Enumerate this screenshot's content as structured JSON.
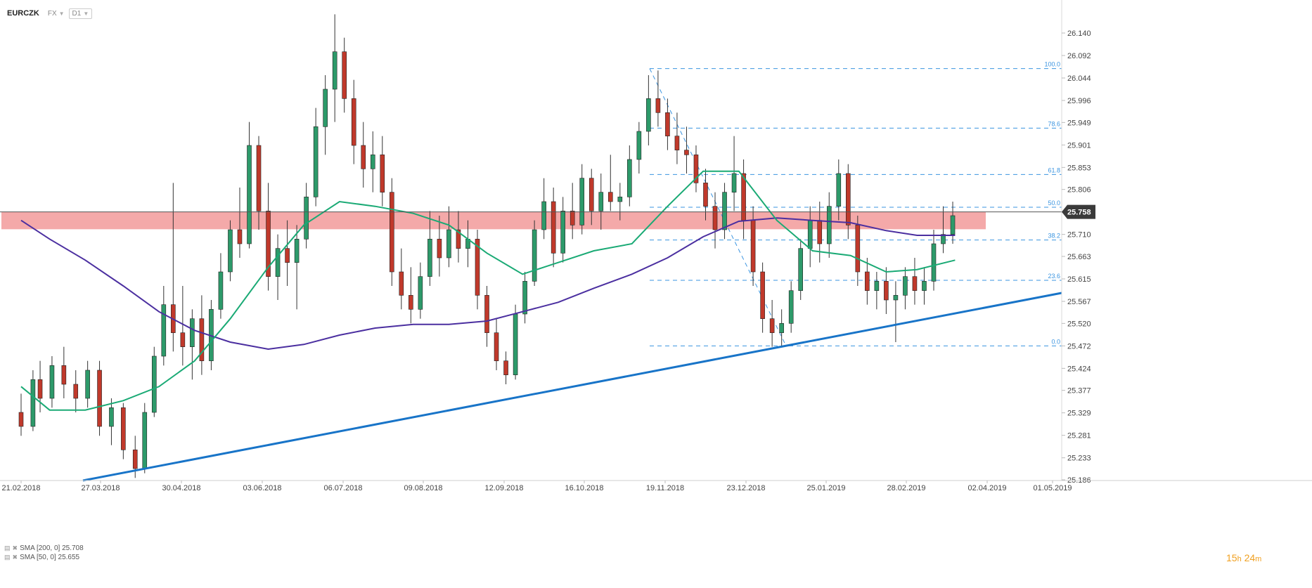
{
  "header": {
    "symbol": "EURCZK",
    "market": "FX",
    "interval": "D1"
  },
  "indicators": [
    {
      "label": "SMA [200, 0] 25.708"
    },
    {
      "label": "SMA [50, 0] 25.655"
    }
  ],
  "timer": {
    "hours": "15",
    "h_unit": "h",
    "minutes": "24",
    "m_unit": "m"
  },
  "colors": {
    "sma200": "#4b2fa0",
    "sma50": "#1aaa75",
    "trendline": "#1874c8",
    "fib": "#3a94e0",
    "zone": "#f08c8c",
    "bull": "#2d9a6a",
    "bear": "#c0392b",
    "wick": "#333333",
    "price_tag": "#3a3a3a"
  },
  "chart_data": {
    "type": "candlestick",
    "instrument": "EURCZK",
    "timeframe": "D1",
    "y_ticks": [
      26.14,
      26.092,
      26.044,
      25.996,
      25.949,
      25.901,
      25.853,
      25.806,
      25.758,
      25.71,
      25.663,
      25.615,
      25.567,
      25.52,
      25.472,
      25.424,
      25.377,
      25.329,
      25.281,
      25.233,
      25.186
    ],
    "y_tick_labels": [
      "26.140",
      "26.092",
      "26.044",
      "25.996",
      "25.949",
      "25.901",
      "25.853",
      "25.806",
      "25.758",
      "25.710",
      "25.663",
      "25.615",
      "25.567",
      "25.520",
      "25.472",
      "25.424",
      "25.377",
      "25.329",
      "25.281",
      "25.233",
      "25.186"
    ],
    "ylim": [
      25.18,
      26.17
    ],
    "x_tick_labels": [
      "21.02.2018",
      "27.03.2018",
      "30.04.2018",
      "03.06.2018",
      "06.07.2018",
      "09.08.2018",
      "12.09.2018",
      "16.10.2018",
      "19.11.2018",
      "23.12.2018",
      "25.01.2019",
      "28.02.2019",
      "02.04.2019",
      "01.05.2019"
    ],
    "last_price": 25.758,
    "last_price_label": "25.758",
    "resistance_zone": [
      25.721,
      25.758
    ],
    "fibonacci": {
      "high": 26.064,
      "low": 25.472,
      "levels": [
        {
          "ratio": "100.0",
          "value": 26.064
        },
        {
          "ratio": "78.6",
          "value": 25.937
        },
        {
          "ratio": "61.8",
          "value": 25.838
        },
        {
          "ratio": "50.0",
          "value": 25.768
        },
        {
          "ratio": "38.2",
          "value": 25.698
        },
        {
          "ratio": "23.6",
          "value": 25.612
        },
        {
          "ratio": "0.0",
          "value": 25.472
        }
      ]
    },
    "trendline": {
      "from": {
        "date": "2018-03-22",
        "value": 25.18
      },
      "to": {
        "date": "2019-05-01",
        "value": 25.585
      }
    },
    "sma200": [
      {
        "date": "2018-02-21",
        "value": 25.74
      },
      {
        "date": "2018-03-05",
        "value": 25.7
      },
      {
        "date": "2018-03-20",
        "value": 25.655
      },
      {
        "date": "2018-04-05",
        "value": 25.6
      },
      {
        "date": "2018-04-20",
        "value": 25.545
      },
      {
        "date": "2018-05-05",
        "value": 25.505
      },
      {
        "date": "2018-05-20",
        "value": 25.48
      },
      {
        "date": "2018-06-05",
        "value": 25.465
      },
      {
        "date": "2018-06-20",
        "value": 25.475
      },
      {
        "date": "2018-07-05",
        "value": 25.495
      },
      {
        "date": "2018-07-20",
        "value": 25.51
      },
      {
        "date": "2018-08-05",
        "value": 25.518
      },
      {
        "date": "2018-08-20",
        "value": 25.518
      },
      {
        "date": "2018-09-05",
        "value": 25.525
      },
      {
        "date": "2018-09-20",
        "value": 25.545
      },
      {
        "date": "2018-10-05",
        "value": 25.565
      },
      {
        "date": "2018-10-20",
        "value": 25.595
      },
      {
        "date": "2018-11-05",
        "value": 25.625
      },
      {
        "date": "2018-11-20",
        "value": 25.66
      },
      {
        "date": "2018-12-05",
        "value": 25.705
      },
      {
        "date": "2018-12-20",
        "value": 25.738
      },
      {
        "date": "2019-01-05",
        "value": 25.745
      },
      {
        "date": "2019-01-20",
        "value": 25.74
      },
      {
        "date": "2019-02-05",
        "value": 25.735
      },
      {
        "date": "2019-02-20",
        "value": 25.718
      },
      {
        "date": "2019-03-05",
        "value": 25.708
      },
      {
        "date": "2019-03-21",
        "value": 25.708
      }
    ],
    "sma50": [
      {
        "date": "2018-02-21",
        "value": 25.385
      },
      {
        "date": "2018-03-05",
        "value": 25.335
      },
      {
        "date": "2018-03-20",
        "value": 25.335
      },
      {
        "date": "2018-04-05",
        "value": 25.355
      },
      {
        "date": "2018-04-20",
        "value": 25.385
      },
      {
        "date": "2018-05-05",
        "value": 25.44
      },
      {
        "date": "2018-05-20",
        "value": 25.53
      },
      {
        "date": "2018-06-05",
        "value": 25.64
      },
      {
        "date": "2018-06-20",
        "value": 25.73
      },
      {
        "date": "2018-07-05",
        "value": 25.78
      },
      {
        "date": "2018-07-20",
        "value": 25.77
      },
      {
        "date": "2018-08-05",
        "value": 25.755
      },
      {
        "date": "2018-08-20",
        "value": 25.73
      },
      {
        "date": "2018-09-05",
        "value": 25.67
      },
      {
        "date": "2018-09-20",
        "value": 25.625
      },
      {
        "date": "2018-10-05",
        "value": 25.65
      },
      {
        "date": "2018-10-20",
        "value": 25.675
      },
      {
        "date": "2018-11-05",
        "value": 25.69
      },
      {
        "date": "2018-11-20",
        "value": 25.77
      },
      {
        "date": "2018-12-05",
        "value": 25.845
      },
      {
        "date": "2018-12-20",
        "value": 25.845
      },
      {
        "date": "2019-01-05",
        "value": 25.74
      },
      {
        "date": "2019-01-20",
        "value": 25.675
      },
      {
        "date": "2019-02-05",
        "value": 25.665
      },
      {
        "date": "2019-02-20",
        "value": 25.63
      },
      {
        "date": "2019-03-05",
        "value": 25.635
      },
      {
        "date": "2019-03-21",
        "value": 25.655
      }
    ],
    "candles": [
      {
        "date": "2018-02-21",
        "o": 25.33,
        "h": 25.37,
        "l": 25.28,
        "c": 25.3
      },
      {
        "date": "2018-02-26",
        "o": 25.3,
        "h": 25.42,
        "l": 25.29,
        "c": 25.4
      },
      {
        "date": "2018-03-01",
        "o": 25.4,
        "h": 25.44,
        "l": 25.33,
        "c": 25.36
      },
      {
        "date": "2018-03-06",
        "o": 25.36,
        "h": 25.45,
        "l": 25.34,
        "c": 25.43
      },
      {
        "date": "2018-03-11",
        "o": 25.43,
        "h": 25.47,
        "l": 25.36,
        "c": 25.39
      },
      {
        "date": "2018-03-16",
        "o": 25.39,
        "h": 25.42,
        "l": 25.33,
        "c": 25.36
      },
      {
        "date": "2018-03-21",
        "o": 25.36,
        "h": 25.44,
        "l": 25.34,
        "c": 25.42
      },
      {
        "date": "2018-03-26",
        "o": 25.42,
        "h": 25.44,
        "l": 25.28,
        "c": 25.3
      },
      {
        "date": "2018-03-31",
        "o": 25.3,
        "h": 25.36,
        "l": 25.26,
        "c": 25.34
      },
      {
        "date": "2018-04-05",
        "o": 25.34,
        "h": 25.35,
        "l": 25.23,
        "c": 25.25
      },
      {
        "date": "2018-04-10",
        "o": 25.25,
        "h": 25.28,
        "l": 25.19,
        "c": 25.21
      },
      {
        "date": "2018-04-14",
        "o": 25.21,
        "h": 25.35,
        "l": 25.2,
        "c": 25.33
      },
      {
        "date": "2018-04-18",
        "o": 25.33,
        "h": 25.47,
        "l": 25.32,
        "c": 25.45
      },
      {
        "date": "2018-04-22",
        "o": 25.45,
        "h": 25.6,
        "l": 25.43,
        "c": 25.56
      },
      {
        "date": "2018-04-26",
        "o": 25.56,
        "h": 25.82,
        "l": 25.46,
        "c": 25.5
      },
      {
        "date": "2018-04-30",
        "o": 25.5,
        "h": 25.6,
        "l": 25.43,
        "c": 25.47
      },
      {
        "date": "2018-05-04",
        "o": 25.47,
        "h": 25.55,
        "l": 25.4,
        "c": 25.53
      },
      {
        "date": "2018-05-08",
        "o": 25.53,
        "h": 25.58,
        "l": 25.41,
        "c": 25.44
      },
      {
        "date": "2018-05-12",
        "o": 25.44,
        "h": 25.57,
        "l": 25.42,
        "c": 25.55
      },
      {
        "date": "2018-05-16",
        "o": 25.55,
        "h": 25.67,
        "l": 25.53,
        "c": 25.63
      },
      {
        "date": "2018-05-20",
        "o": 25.63,
        "h": 25.74,
        "l": 25.61,
        "c": 25.72
      },
      {
        "date": "2018-05-24",
        "o": 25.72,
        "h": 25.81,
        "l": 25.66,
        "c": 25.69
      },
      {
        "date": "2018-05-28",
        "o": 25.69,
        "h": 25.95,
        "l": 25.68,
        "c": 25.9
      },
      {
        "date": "2018-06-01",
        "o": 25.9,
        "h": 25.92,
        "l": 25.72,
        "c": 25.76
      },
      {
        "date": "2018-06-05",
        "o": 25.76,
        "h": 25.82,
        "l": 25.59,
        "c": 25.62
      },
      {
        "date": "2018-06-09",
        "o": 25.62,
        "h": 25.71,
        "l": 25.57,
        "c": 25.68
      },
      {
        "date": "2018-06-13",
        "o": 25.68,
        "h": 25.74,
        "l": 25.6,
        "c": 25.65
      },
      {
        "date": "2018-06-17",
        "o": 25.65,
        "h": 25.73,
        "l": 25.55,
        "c": 25.7
      },
      {
        "date": "2018-06-21",
        "o": 25.7,
        "h": 25.82,
        "l": 25.68,
        "c": 25.79
      },
      {
        "date": "2018-06-25",
        "o": 25.79,
        "h": 25.98,
        "l": 25.77,
        "c": 25.94
      },
      {
        "date": "2018-06-29",
        "o": 25.94,
        "h": 26.05,
        "l": 25.88,
        "c": 26.02
      },
      {
        "date": "2018-07-03",
        "o": 26.02,
        "h": 26.18,
        "l": 25.95,
        "c": 26.1
      },
      {
        "date": "2018-07-07",
        "o": 26.1,
        "h": 26.13,
        "l": 25.97,
        "c": 26.0
      },
      {
        "date": "2018-07-11",
        "o": 26.0,
        "h": 26.04,
        "l": 25.86,
        "c": 25.9
      },
      {
        "date": "2018-07-15",
        "o": 25.9,
        "h": 25.95,
        "l": 25.81,
        "c": 25.85
      },
      {
        "date": "2018-07-19",
        "o": 25.85,
        "h": 25.93,
        "l": 25.8,
        "c": 25.88
      },
      {
        "date": "2018-07-23",
        "o": 25.88,
        "h": 25.92,
        "l": 25.77,
        "c": 25.8
      },
      {
        "date": "2018-07-27",
        "o": 25.8,
        "h": 25.83,
        "l": 25.6,
        "c": 25.63
      },
      {
        "date": "2018-07-31",
        "o": 25.63,
        "h": 25.68,
        "l": 25.55,
        "c": 25.58
      },
      {
        "date": "2018-08-04",
        "o": 25.58,
        "h": 25.64,
        "l": 25.52,
        "c": 25.55
      },
      {
        "date": "2018-08-08",
        "o": 25.55,
        "h": 25.65,
        "l": 25.53,
        "c": 25.62
      },
      {
        "date": "2018-08-12",
        "o": 25.62,
        "h": 25.76,
        "l": 25.6,
        "c": 25.7
      },
      {
        "date": "2018-08-16",
        "o": 25.7,
        "h": 25.75,
        "l": 25.62,
        "c": 25.66
      },
      {
        "date": "2018-08-20",
        "o": 25.66,
        "h": 25.77,
        "l": 25.64,
        "c": 25.72
      },
      {
        "date": "2018-08-24",
        "o": 25.72,
        "h": 25.76,
        "l": 25.65,
        "c": 25.68
      },
      {
        "date": "2018-08-28",
        "o": 25.68,
        "h": 25.74,
        "l": 25.64,
        "c": 25.7
      },
      {
        "date": "2018-09-01",
        "o": 25.7,
        "h": 25.72,
        "l": 25.55,
        "c": 25.58
      },
      {
        "date": "2018-09-05",
        "o": 25.58,
        "h": 25.6,
        "l": 25.47,
        "c": 25.5
      },
      {
        "date": "2018-09-09",
        "o": 25.5,
        "h": 25.53,
        "l": 25.42,
        "c": 25.44
      },
      {
        "date": "2018-09-13",
        "o": 25.44,
        "h": 25.46,
        "l": 25.39,
        "c": 25.41
      },
      {
        "date": "2018-09-17",
        "o": 25.41,
        "h": 25.56,
        "l": 25.4,
        "c": 25.54
      },
      {
        "date": "2018-09-21",
        "o": 25.54,
        "h": 25.63,
        "l": 25.52,
        "c": 25.61
      },
      {
        "date": "2018-09-25",
        "o": 25.61,
        "h": 25.74,
        "l": 25.6,
        "c": 25.72
      },
      {
        "date": "2018-09-29",
        "o": 25.72,
        "h": 25.83,
        "l": 25.7,
        "c": 25.78
      },
      {
        "date": "2018-10-03",
        "o": 25.78,
        "h": 25.81,
        "l": 25.64,
        "c": 25.67
      },
      {
        "date": "2018-10-07",
        "o": 25.67,
        "h": 25.79,
        "l": 25.65,
        "c": 25.76
      },
      {
        "date": "2018-10-11",
        "o": 25.76,
        "h": 25.82,
        "l": 25.7,
        "c": 25.73
      },
      {
        "date": "2018-10-15",
        "o": 25.73,
        "h": 25.86,
        "l": 25.71,
        "c": 25.83
      },
      {
        "date": "2018-10-19",
        "o": 25.83,
        "h": 25.85,
        "l": 25.73,
        "c": 25.76
      },
      {
        "date": "2018-10-23",
        "o": 25.76,
        "h": 25.84,
        "l": 25.72,
        "c": 25.8
      },
      {
        "date": "2018-10-27",
        "o": 25.8,
        "h": 25.88,
        "l": 25.76,
        "c": 25.78
      },
      {
        "date": "2018-10-31",
        "o": 25.78,
        "h": 25.82,
        "l": 25.74,
        "c": 25.79
      },
      {
        "date": "2018-11-04",
        "o": 25.79,
        "h": 25.9,
        "l": 25.77,
        "c": 25.87
      },
      {
        "date": "2018-11-08",
        "o": 25.87,
        "h": 25.95,
        "l": 25.84,
        "c": 25.93
      },
      {
        "date": "2018-11-12",
        "o": 25.93,
        "h": 26.05,
        "l": 25.9,
        "c": 26.0
      },
      {
        "date": "2018-11-16",
        "o": 26.0,
        "h": 26.06,
        "l": 25.94,
        "c": 25.97
      },
      {
        "date": "2018-11-20",
        "o": 25.97,
        "h": 26.0,
        "l": 25.89,
        "c": 25.92
      },
      {
        "date": "2018-11-24",
        "o": 25.92,
        "h": 25.97,
        "l": 25.86,
        "c": 25.89
      },
      {
        "date": "2018-11-28",
        "o": 25.89,
        "h": 25.94,
        "l": 25.84,
        "c": 25.88
      },
      {
        "date": "2018-12-02",
        "o": 25.88,
        "h": 25.9,
        "l": 25.8,
        "c": 25.82
      },
      {
        "date": "2018-12-06",
        "o": 25.82,
        "h": 25.85,
        "l": 25.74,
        "c": 25.77
      },
      {
        "date": "2018-12-10",
        "o": 25.77,
        "h": 25.8,
        "l": 25.68,
        "c": 25.72
      },
      {
        "date": "2018-12-14",
        "o": 25.72,
        "h": 25.82,
        "l": 25.7,
        "c": 25.8
      },
      {
        "date": "2018-12-18",
        "o": 25.8,
        "h": 25.92,
        "l": 25.76,
        "c": 25.84
      },
      {
        "date": "2018-12-22",
        "o": 25.84,
        "h": 25.87,
        "l": 25.7,
        "c": 25.74
      },
      {
        "date": "2018-12-26",
        "o": 25.74,
        "h": 25.77,
        "l": 25.6,
        "c": 25.63
      },
      {
        "date": "2018-12-30",
        "o": 25.63,
        "h": 25.65,
        "l": 25.5,
        "c": 25.53
      },
      {
        "date": "2019-01-03",
        "o": 25.53,
        "h": 25.57,
        "l": 25.47,
        "c": 25.5
      },
      {
        "date": "2019-01-07",
        "o": 25.5,
        "h": 25.55,
        "l": 25.47,
        "c": 25.52
      },
      {
        "date": "2019-01-11",
        "o": 25.52,
        "h": 25.61,
        "l": 25.5,
        "c": 25.59
      },
      {
        "date": "2019-01-15",
        "o": 25.59,
        "h": 25.7,
        "l": 25.57,
        "c": 25.68
      },
      {
        "date": "2019-01-19",
        "o": 25.68,
        "h": 25.77,
        "l": 25.64,
        "c": 25.74
      },
      {
        "date": "2019-01-23",
        "o": 25.74,
        "h": 25.78,
        "l": 25.65,
        "c": 25.69
      },
      {
        "date": "2019-01-27",
        "o": 25.69,
        "h": 25.8,
        "l": 25.66,
        "c": 25.77
      },
      {
        "date": "2019-01-31",
        "o": 25.77,
        "h": 25.87,
        "l": 25.74,
        "c": 25.84
      },
      {
        "date": "2019-02-04",
        "o": 25.84,
        "h": 25.86,
        "l": 25.7,
        "c": 25.73
      },
      {
        "date": "2019-02-08",
        "o": 25.73,
        "h": 25.75,
        "l": 25.6,
        "c": 25.63
      },
      {
        "date": "2019-02-12",
        "o": 25.63,
        "h": 25.66,
        "l": 25.56,
        "c": 25.59
      },
      {
        "date": "2019-02-16",
        "o": 25.59,
        "h": 25.63,
        "l": 25.55,
        "c": 25.61
      },
      {
        "date": "2019-02-20",
        "o": 25.61,
        "h": 25.64,
        "l": 25.54,
        "c": 25.57
      },
      {
        "date": "2019-02-24",
        "o": 25.57,
        "h": 25.61,
        "l": 25.48,
        "c": 25.58
      },
      {
        "date": "2019-02-28",
        "o": 25.58,
        "h": 25.64,
        "l": 25.55,
        "c": 25.62
      },
      {
        "date": "2019-03-04",
        "o": 25.62,
        "h": 25.66,
        "l": 25.56,
        "c": 25.59
      },
      {
        "date": "2019-03-08",
        "o": 25.59,
        "h": 25.64,
        "l": 25.56,
        "c": 25.61
      },
      {
        "date": "2019-03-12",
        "o": 25.61,
        "h": 25.72,
        "l": 25.59,
        "c": 25.69
      },
      {
        "date": "2019-03-16",
        "o": 25.69,
        "h": 25.77,
        "l": 25.67,
        "c": 25.71
      },
      {
        "date": "2019-03-20",
        "o": 25.71,
        "h": 25.78,
        "l": 25.69,
        "c": 25.75
      }
    ]
  }
}
